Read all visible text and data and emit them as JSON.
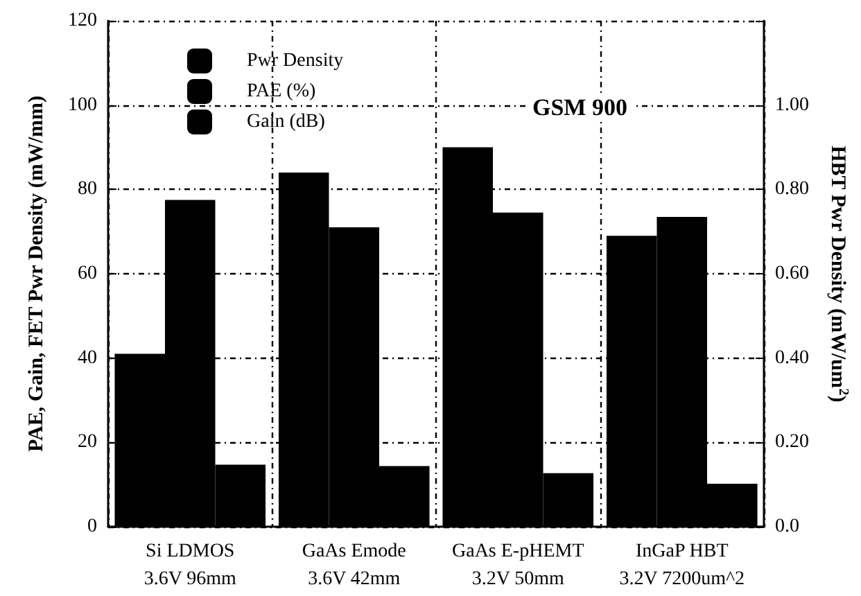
{
  "chart_data": {
    "type": "bar",
    "ylabel": "PAE, Gain, FET Pwr Density (mW/mm)",
    "y2label": "HBT Pwr Density (mW/um$^{2}$)",
    "categories": [
      "Si LDMOS\n3.6V 96mm",
      "GaAs Emode\n3.6V 42mm",
      "GaAs E-pHEMT\n3.2V 50mm",
      "InGaP HBT\n3.2V 7200um^2"
    ],
    "series": [
      {
        "name": "Pwr Density",
        "color": "#000000",
        "values": [
          41,
          84,
          90,
          null
        ]
      },
      {
        "name": "PAE (%)",
        "color": "#000000",
        "values": [
          77.5,
          71,
          74.5,
          73.5
        ]
      },
      {
        "name": "Gain (dB)",
        "color": "#000000",
        "values": [
          14.7,
          14.4,
          12.7,
          10.2
        ]
      },
      {
        "color": "#000000",
        "axis": "y2",
        "values": [
          null,
          null,
          null,
          0.69
        ]
      }
    ],
    "ylim": [
      0,
      120
    ],
    "yticks": [
      0,
      20,
      40,
      60,
      80,
      100,
      120
    ],
    "y2lim": [
      0,
      1.2
    ],
    "y2ticks": [
      {
        "value": 0,
        "label": "0.0"
      },
      {
        "value": 0.2,
        "label": "0.20"
      },
      {
        "value": 0.4,
        "label": "0.40"
      },
      {
        "value": 0.6,
        "label": "0.60"
      },
      {
        "value": 0.8,
        "label": "0.80"
      },
      {
        "value": 1,
        "label": "1.00"
      },
      {
        "value": 1.2,
        "label": null
      }
    ],
    "annotations": [
      "GSM 900"
    ],
    "grid": true,
    "legend": "top left"
  }
}
